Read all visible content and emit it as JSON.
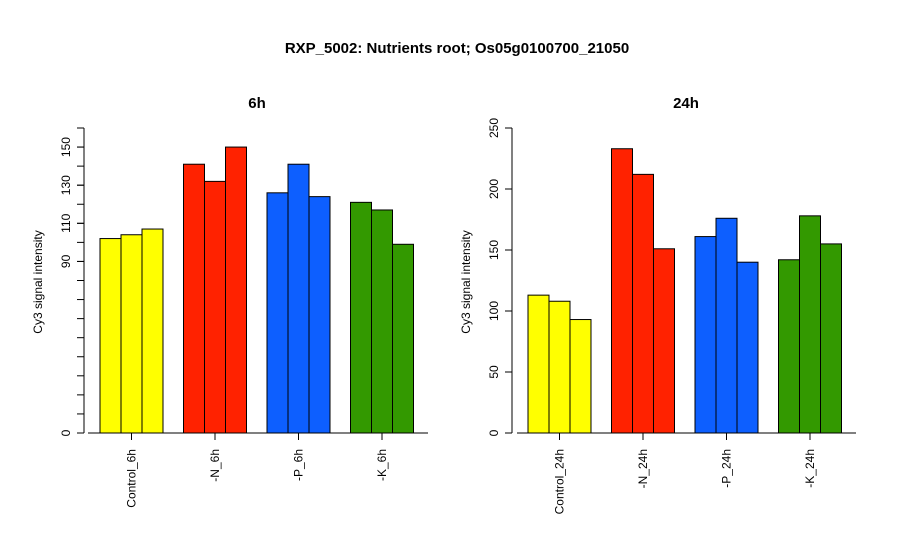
{
  "figure": {
    "title": "RXP_5002: Nutrients root; Os05g0100700_21050"
  },
  "chart_data": [
    {
      "type": "bar",
      "title": "6h",
      "ylabel": "Cy3 signal intensity",
      "xlabel": "",
      "categories": [
        "Control_6h",
        "-N_6h",
        "-P_6h",
        "-K_6h"
      ],
      "replicates_per_category": 3,
      "colors": [
        "#ffff00",
        "#ff2200",
        "#0d5fff",
        "#339900"
      ],
      "values": [
        [
          102,
          104,
          107
        ],
        [
          141,
          132,
          150
        ],
        [
          126,
          141,
          124
        ],
        [
          121,
          117,
          99
        ]
      ],
      "ylim": [
        0,
        160
      ],
      "yticks": [
        0,
        90,
        110,
        130,
        150
      ],
      "yticks_minor": [
        10,
        20,
        30,
        40,
        50,
        60,
        70,
        80,
        90,
        100,
        110,
        120,
        130,
        140,
        150,
        160
      ],
      "grid": false,
      "legend": "none"
    },
    {
      "type": "bar",
      "title": "24h",
      "ylabel": "Cy3 signal intensity",
      "xlabel": "",
      "categories": [
        "Control_24h",
        "-N_24h",
        "-P_24h",
        "-K_24h"
      ],
      "replicates_per_category": 3,
      "colors": [
        "#ffff00",
        "#ff2200",
        "#0d5fff",
        "#339900"
      ],
      "values": [
        [
          113,
          108,
          93
        ],
        [
          233,
          212,
          151
        ],
        [
          161,
          176,
          140
        ],
        [
          142,
          178,
          155
        ]
      ],
      "ylim": [
        0,
        250
      ],
      "yticks": [
        0,
        50,
        100,
        150,
        200,
        250
      ],
      "yticks_minor": [],
      "grid": false,
      "legend": "none"
    }
  ]
}
